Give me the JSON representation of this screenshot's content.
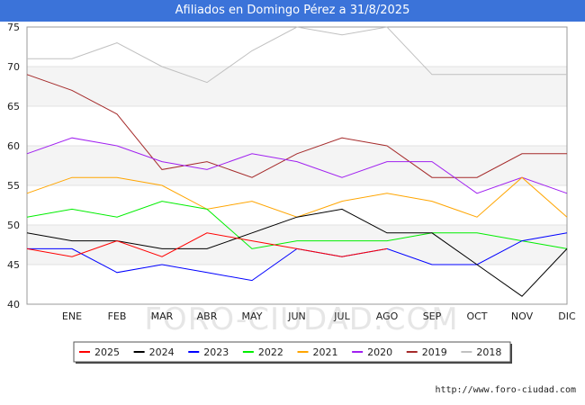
{
  "chart_data": {
    "type": "line",
    "title": "Afiliados en Domingo Pérez a 31/8/2025",
    "categories": [
      "",
      "ENE",
      "FEB",
      "MAR",
      "ABR",
      "MAY",
      "JUN",
      "JUL",
      "AGO",
      "SEP",
      "OCT",
      "NOV",
      "DIC"
    ],
    "ylim": [
      40,
      75
    ],
    "yticks": [
      40,
      45,
      50,
      55,
      60,
      65,
      70,
      75
    ],
    "xlabel": "",
    "ylabel": "",
    "legend_position": "bottom",
    "series": [
      {
        "name": "2025",
        "color": "#ff0000",
        "values": [
          47,
          46,
          48,
          46,
          49,
          48,
          47,
          46,
          47,
          null,
          null,
          null,
          null
        ]
      },
      {
        "name": "2024",
        "color": "#000000",
        "values": [
          49,
          48,
          48,
          47,
          47,
          49,
          51,
          52,
          49,
          49,
          45,
          41,
          47
        ]
      },
      {
        "name": "2023",
        "color": "#0000ff",
        "values": [
          47,
          47,
          44,
          45,
          44,
          43,
          47,
          46,
          47,
          45,
          45,
          48,
          49
        ]
      },
      {
        "name": "2022",
        "color": "#00ee00",
        "values": [
          51,
          52,
          51,
          53,
          52,
          47,
          48,
          48,
          48,
          49,
          49,
          48,
          47
        ]
      },
      {
        "name": "2021",
        "color": "#ffa500",
        "values": [
          54,
          56,
          56,
          55,
          52,
          53,
          51,
          53,
          54,
          53,
          51,
          56,
          51
        ]
      },
      {
        "name": "2020",
        "color": "#a020f0",
        "values": [
          59,
          61,
          60,
          58,
          57,
          59,
          58,
          56,
          58,
          58,
          54,
          56,
          54
        ]
      },
      {
        "name": "2019",
        "color": "#a52a2a",
        "values": [
          69,
          67,
          64,
          57,
          58,
          56,
          59,
          61,
          60,
          56,
          56,
          59,
          59
        ]
      },
      {
        "name": "2018",
        "color": "#c0c0c0",
        "values": [
          71,
          71,
          73,
          70,
          68,
          72,
          75,
          74,
          75,
          69,
          69,
          69,
          69
        ]
      }
    ]
  },
  "watermark": "FORO-CIUDAD.COM",
  "source": "http://www.foro-ciudad.com"
}
